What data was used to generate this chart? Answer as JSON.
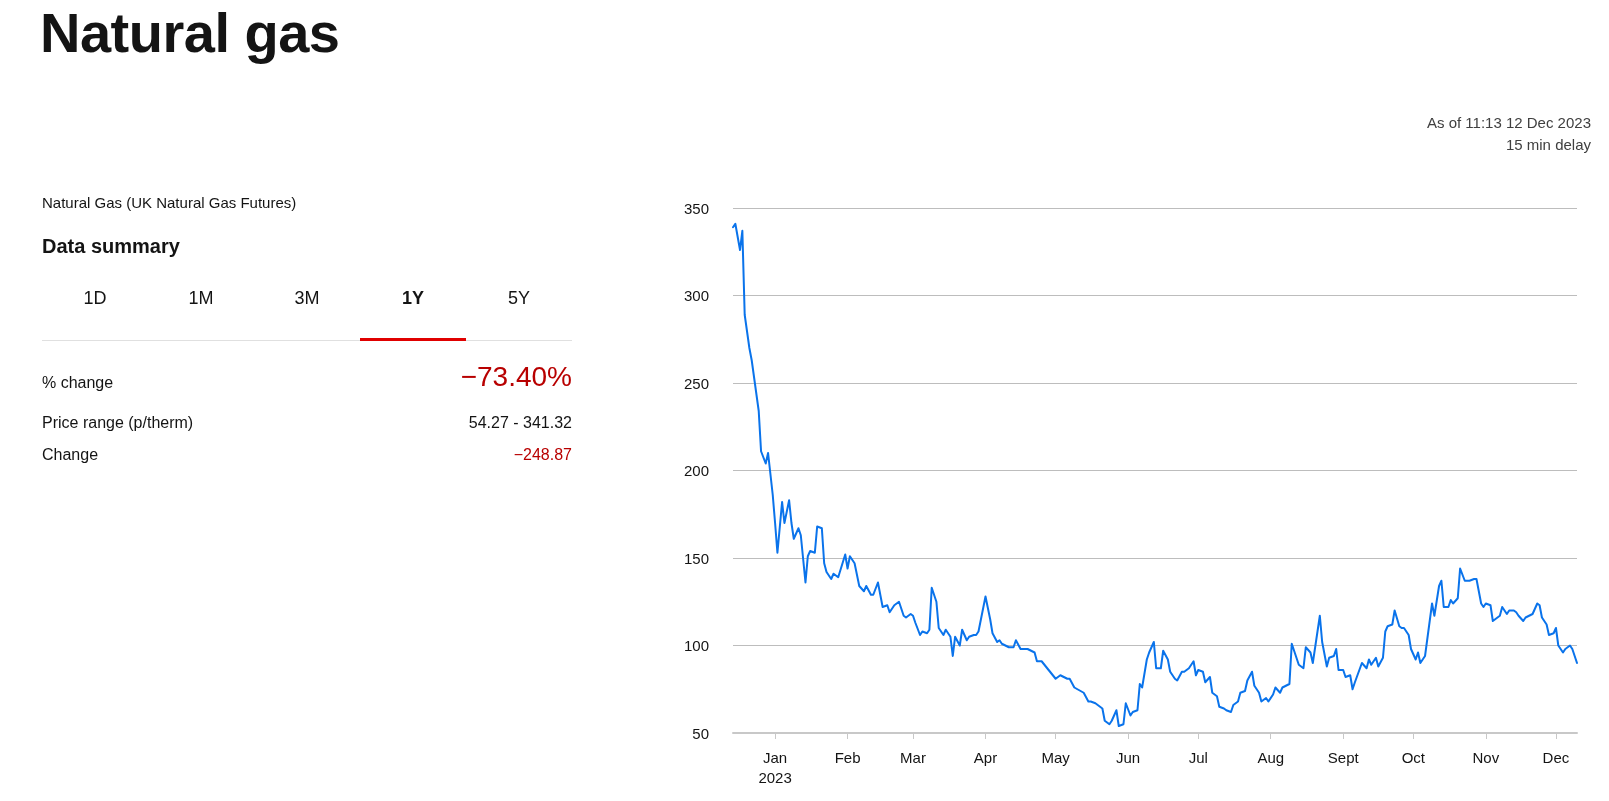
{
  "chart_data": {
    "type": "line",
    "title": "Natural gas",
    "subtitle": "Natural Gas (UK Natural Gas Futures)",
    "annotations": [
      "As of 11:13 12 Dec 2023",
      "15 min delay",
      "Data summary",
      "1D",
      "1M",
      "3M",
      "1Y",
      "5Y",
      "% change",
      "−73.40%",
      "Price range (p/therm)",
      "54.27 - 341.32",
      "Change",
      "−248.87"
    ],
    "xlim": [
      "2022-12-14",
      "2023-12-10"
    ],
    "xticks": [
      {
        "value": "2023-01-01",
        "label": "Jan\n2023"
      },
      {
        "value": "2023-02-01",
        "label": "Feb"
      },
      {
        "value": "2023-03-01",
        "label": "Mar"
      },
      {
        "value": "2023-04-01",
        "label": "Apr"
      },
      {
        "value": "2023-05-01",
        "label": "May"
      },
      {
        "value": "2023-06-01",
        "label": "Jun"
      },
      {
        "value": "2023-07-01",
        "label": "Jul"
      },
      {
        "value": "2023-08-01",
        "label": "Aug"
      },
      {
        "value": "2023-09-01",
        "label": "Sept"
      },
      {
        "value": "2023-10-01",
        "label": "Oct"
      },
      {
        "value": "2023-11-01",
        "label": "Nov"
      },
      {
        "value": "2023-12-01",
        "label": "Dec"
      }
    ],
    "ylim": [
      50,
      350
    ],
    "yticks": [
      50,
      100,
      150,
      200,
      250,
      300,
      350
    ],
    "grid": "y",
    "marker": "none",
    "line_style": "solid",
    "series": [
      {
        "color": "#0a73eb",
        "x": [
          "2022-12-14",
          "2022-12-15",
          "2022-12-17",
          "2022-12-18",
          "2022-12-19",
          "2022-12-21",
          "2022-12-22",
          "2022-12-25",
          "2022-12-26",
          "2022-12-28",
          "2022-12-29",
          "2022-12-31",
          "2023-01-01",
          "2023-01-02",
          "2023-01-04",
          "2023-01-05",
          "2023-01-07",
          "2023-01-08",
          "2023-01-09",
          "2023-01-11",
          "2023-01-12",
          "2023-01-14",
          "2023-01-15",
          "2023-01-16",
          "2023-01-18",
          "2023-01-19",
          "2023-01-21",
          "2023-01-22",
          "2023-01-23",
          "2023-01-25",
          "2023-01-26",
          "2023-01-28",
          "2023-01-31",
          "2023-02-01",
          "2023-02-02",
          "2023-02-04",
          "2023-02-06",
          "2023-02-08",
          "2023-02-09",
          "2023-02-11",
          "2023-02-12",
          "2023-02-14",
          "2023-02-16",
          "2023-02-18",
          "2023-02-19",
          "2023-02-21",
          "2023-02-23",
          "2023-02-25",
          "2023-02-26",
          "2023-02-28",
          "2023-03-01",
          "2023-03-02",
          "2023-03-04",
          "2023-03-05",
          "2023-03-07",
          "2023-03-08",
          "2023-03-09",
          "2023-03-11",
          "2023-03-12",
          "2023-03-14",
          "2023-03-15",
          "2023-03-17",
          "2023-03-18",
          "2023-03-19",
          "2023-03-21",
          "2023-03-22",
          "2023-03-24",
          "2023-03-25",
          "2023-03-27",
          "2023-03-28",
          "2023-03-29",
          "2023-04-01",
          "2023-04-03",
          "2023-04-04",
          "2023-04-06",
          "2023-04-07",
          "2023-04-08",
          "2023-04-11",
          "2023-04-13",
          "2023-04-14",
          "2023-04-16",
          "2023-04-19",
          "2023-04-22",
          "2023-04-23",
          "2023-04-25",
          "2023-04-28",
          "2023-05-01",
          "2023-05-03",
          "2023-05-06",
          "2023-05-07",
          "2023-05-09",
          "2023-05-13",
          "2023-05-15",
          "2023-05-16",
          "2023-05-18",
          "2023-05-21",
          "2023-05-22",
          "2023-05-24",
          "2023-05-25",
          "2023-05-27",
          "2023-05-28",
          "2023-05-30",
          "2023-05-31",
          "2023-06-02",
          "2023-06-03",
          "2023-06-05",
          "2023-06-06",
          "2023-06-07",
          "2023-06-09",
          "2023-06-10",
          "2023-06-12",
          "2023-06-13",
          "2023-06-15",
          "2023-06-16",
          "2023-06-18",
          "2023-06-19",
          "2023-06-21",
          "2023-06-22",
          "2023-06-24",
          "2023-06-25",
          "2023-06-27",
          "2023-06-29",
          "2023-06-30",
          "2023-07-01",
          "2023-07-03",
          "2023-07-04",
          "2023-07-06",
          "2023-07-07",
          "2023-07-09",
          "2023-07-10",
          "2023-07-12",
          "2023-07-13",
          "2023-07-15",
          "2023-07-16",
          "2023-07-18",
          "2023-07-19",
          "2023-07-21",
          "2023-07-22",
          "2023-07-24",
          "2023-07-25",
          "2023-07-27",
          "2023-07-28",
          "2023-07-30",
          "2023-07-31",
          "2023-08-02",
          "2023-08-03",
          "2023-08-05",
          "2023-08-06",
          "2023-08-09",
          "2023-08-10",
          "2023-08-12",
          "2023-08-13",
          "2023-08-15",
          "2023-08-16",
          "2023-08-18",
          "2023-08-19",
          "2023-08-22",
          "2023-08-23",
          "2023-08-25",
          "2023-08-26",
          "2023-08-28",
          "2023-08-29",
          "2023-08-30",
          "2023-09-01",
          "2023-09-02",
          "2023-09-04",
          "2023-09-05",
          "2023-09-06",
          "2023-09-09",
          "2023-09-11",
          "2023-09-12",
          "2023-09-13",
          "2023-09-15",
          "2023-09-16",
          "2023-09-18",
          "2023-09-19",
          "2023-09-20",
          "2023-09-22",
          "2023-09-23",
          "2023-09-25",
          "2023-09-26",
          "2023-09-27",
          "2023-09-29",
          "2023-09-30",
          "2023-10-02",
          "2023-10-03",
          "2023-10-04",
          "2023-10-06",
          "2023-10-09",
          "2023-10-10",
          "2023-10-12",
          "2023-10-13",
          "2023-10-14",
          "2023-10-16",
          "2023-10-17",
          "2023-10-18",
          "2023-10-20",
          "2023-10-21",
          "2023-10-23",
          "2023-10-24",
          "2023-10-25",
          "2023-10-27",
          "2023-10-28",
          "2023-10-30",
          "2023-10-31",
          "2023-11-01",
          "2023-11-03",
          "2023-11-04",
          "2023-11-06",
          "2023-11-07",
          "2023-11-08",
          "2023-11-10",
          "2023-11-11",
          "2023-11-13",
          "2023-11-14",
          "2023-11-15",
          "2023-11-17",
          "2023-11-18",
          "2023-11-21",
          "2023-11-23",
          "2023-11-24",
          "2023-11-25",
          "2023-11-27",
          "2023-11-28",
          "2023-11-30",
          "2023-12-01",
          "2023-12-02",
          "2023-12-04",
          "2023-12-05",
          "2023-12-07",
          "2023-12-08",
          "2023-12-10"
        ],
        "values": [
          339,
          341,
          326,
          337,
          289,
          270,
          263,
          234,
          211,
          204,
          210,
          186,
          170,
          153,
          182,
          170,
          183,
          170,
          161,
          167,
          163,
          136,
          151,
          154,
          153,
          168,
          167,
          147,
          142,
          138,
          141,
          139,
          152,
          144,
          151,
          147,
          134,
          131,
          134,
          129,
          129,
          136,
          122,
          123,
          119,
          123,
          125,
          117,
          116,
          118,
          117,
          113,
          106,
          108,
          107,
          109,
          133,
          125,
          110,
          106,
          109,
          105,
          94,
          105,
          100,
          109,
          103,
          105,
          106,
          106,
          108,
          128,
          115,
          107,
          102,
          103,
          101,
          99,
          99,
          103,
          98,
          98,
          96,
          91,
          91,
          86,
          81,
          83,
          81,
          81,
          76,
          73,
          68,
          68,
          67,
          64,
          57,
          55,
          57,
          63,
          54,
          55,
          67,
          60,
          62,
          63,
          78,
          76,
          92,
          96,
          102,
          87,
          87,
          97,
          92,
          85,
          81,
          80,
          85,
          85,
          87,
          91,
          83,
          86,
          85,
          79,
          82,
          73,
          71,
          65,
          64,
          63,
          62,
          66,
          68,
          73,
          74,
          80,
          85,
          77,
          73,
          68,
          70,
          68,
          72,
          76,
          73,
          76,
          78,
          101,
          93,
          89,
          87,
          99,
          96,
          90,
          117,
          102,
          88,
          93,
          94,
          98,
          86,
          86,
          82,
          83,
          75,
          79,
          90,
          87,
          92,
          89,
          93,
          88,
          93,
          108,
          111,
          112,
          120,
          111,
          110,
          110,
          106,
          98,
          92,
          96,
          90,
          94,
          124,
          117,
          134,
          137,
          122,
          122,
          126,
          124,
          127,
          144,
          137,
          137,
          137,
          138,
          138,
          124,
          122,
          124,
          123,
          114,
          116,
          117,
          122,
          118,
          120,
          120,
          119,
          117,
          114,
          116,
          118,
          124,
          123,
          116,
          112,
          106,
          107,
          110,
          100,
          96,
          98,
          100,
          98,
          90
        ]
      }
    ]
  }
}
